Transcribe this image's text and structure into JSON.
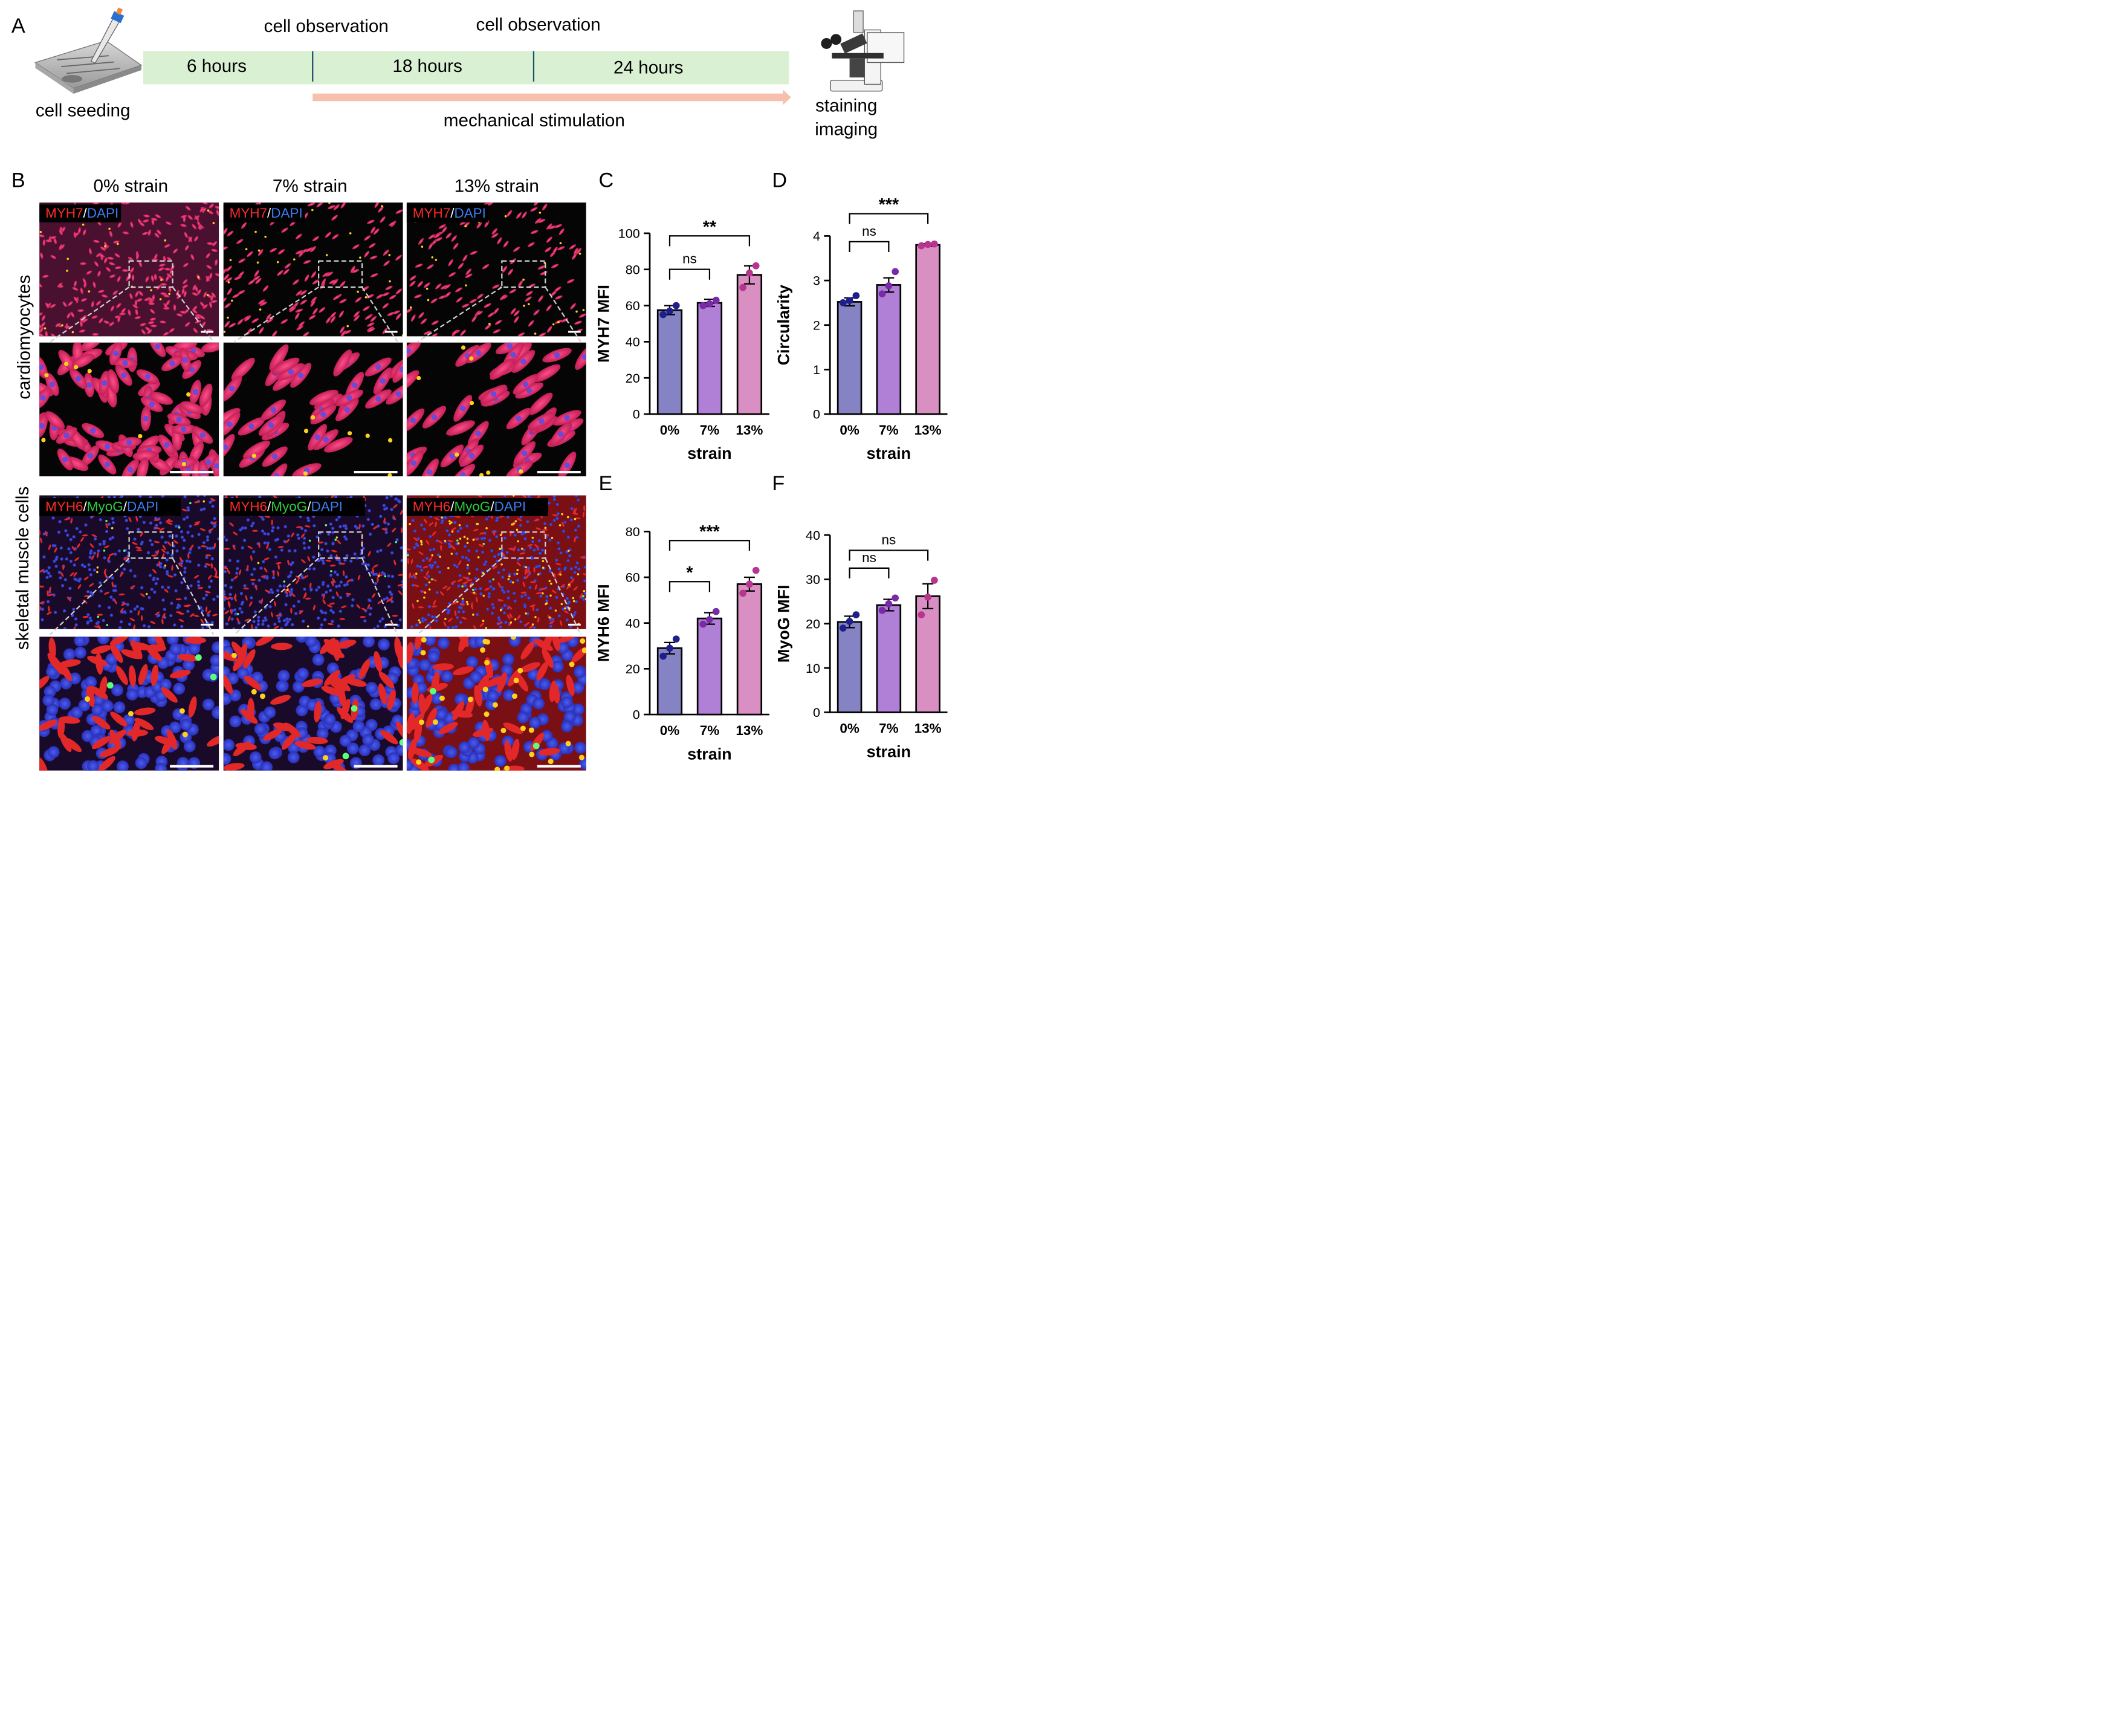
{
  "panel_a": {
    "letter": "A",
    "seeding_label": "cell seeding",
    "obs_label_1": "cell observation",
    "obs_label_2": "cell observation",
    "segments": [
      "6 hours",
      "18 hours",
      "24 hours"
    ],
    "stim_label": "mechanical stimulation",
    "end_label_1": "staining",
    "end_label_2": "imaging"
  },
  "panel_b": {
    "letter": "B",
    "columns": [
      "0% strain",
      "7% strain",
      "13% strain"
    ],
    "row_labels": [
      "cardiomyocytes",
      "skeletal muscle cells"
    ],
    "stain_top": {
      "m1": "MYH7",
      "sep": "/",
      "m2": "DAPI"
    },
    "stain_bottom": {
      "m1": "MYH6",
      "sep1": "/",
      "m2": "MyoG",
      "sep2": "/",
      "m3": "DAPI"
    }
  },
  "colors": {
    "bar_0": "#8683c5",
    "bar_7": "#b07fd6",
    "bar_13": "#d98fc2",
    "dot_0": "#1f1f8c",
    "dot_7": "#7a2aa8",
    "dot_13": "#b8358f",
    "timeline_fill": "#d9f0d3",
    "arrow": "#f6c0ac",
    "stain_red": "#ff2a2a",
    "stain_blue": "#3d7df0",
    "stain_green": "#2ecc40"
  },
  "chart_data": [
    {
      "panel": "C",
      "type": "bar",
      "categories": [
        "0%",
        "7%",
        "13%"
      ],
      "values": [
        57.5,
        61.5,
        77
      ],
      "errors": [
        2.5,
        2,
        5
      ],
      "points": [
        [
          55,
          57,
          60
        ],
        [
          60,
          61,
          63
        ],
        [
          70,
          78,
          82
        ]
      ],
      "ylim": [
        0,
        100
      ],
      "yticks": [
        0,
        20,
        40,
        60,
        80,
        100
      ],
      "xlabel": "strain",
      "ylabel": "MYH7 MFI",
      "comparisons": [
        {
          "from": 0,
          "to": 1,
          "label": "ns"
        },
        {
          "from": 0,
          "to": 2,
          "label": "**"
        }
      ]
    },
    {
      "panel": "D",
      "type": "bar",
      "categories": [
        "0%",
        "7%",
        "13%"
      ],
      "values": [
        2.52,
        2.9,
        3.8
      ],
      "errors": [
        0.09,
        0.16,
        0.03
      ],
      "points": [
        [
          2.5,
          2.55,
          2.66
        ],
        [
          2.7,
          2.88,
          3.2
        ],
        [
          3.78,
          3.81,
          3.82
        ]
      ],
      "ylim": [
        0,
        4
      ],
      "yticks": [
        0,
        1,
        2,
        3,
        4
      ],
      "xlabel": "strain",
      "ylabel": "Circularity",
      "comparisons": [
        {
          "from": 0,
          "to": 1,
          "label": "ns"
        },
        {
          "from": 0,
          "to": 2,
          "label": "***"
        }
      ]
    },
    {
      "panel": "E",
      "type": "bar",
      "categories": [
        "0%",
        "7%",
        "13%"
      ],
      "values": [
        29,
        42,
        57
      ],
      "errors": [
        2.5,
        2.5,
        3
      ],
      "points": [
        [
          25.5,
          29,
          33
        ],
        [
          39.5,
          41.5,
          45
        ],
        [
          53,
          57,
          63
        ]
      ],
      "ylim": [
        0,
        80
      ],
      "yticks": [
        0,
        20,
        40,
        60,
        80
      ],
      "xlabel": "strain",
      "ylabel": "MYH6 MFI",
      "comparisons": [
        {
          "from": 0,
          "to": 1,
          "label": "*"
        },
        {
          "from": 0,
          "to": 2,
          "label": "***"
        }
      ]
    },
    {
      "panel": "F",
      "type": "bar",
      "categories": [
        "0%",
        "7%",
        "13%"
      ],
      "values": [
        20.4,
        24.2,
        26.2
      ],
      "errors": [
        1.3,
        1.3,
        2.8
      ],
      "points": [
        [
          19,
          20.5,
          22
        ],
        [
          23,
          24.5,
          25.8
        ],
        [
          22,
          26,
          29.8
        ]
      ],
      "ylim": [
        0,
        40
      ],
      "yticks": [
        0,
        10,
        20,
        30,
        40
      ],
      "xlabel": "strain",
      "ylabel": "MyoG MFI",
      "comparisons": [
        {
          "from": 0,
          "to": 1,
          "label": "ns"
        },
        {
          "from": 0,
          "to": 2,
          "label": "ns"
        }
      ]
    }
  ]
}
